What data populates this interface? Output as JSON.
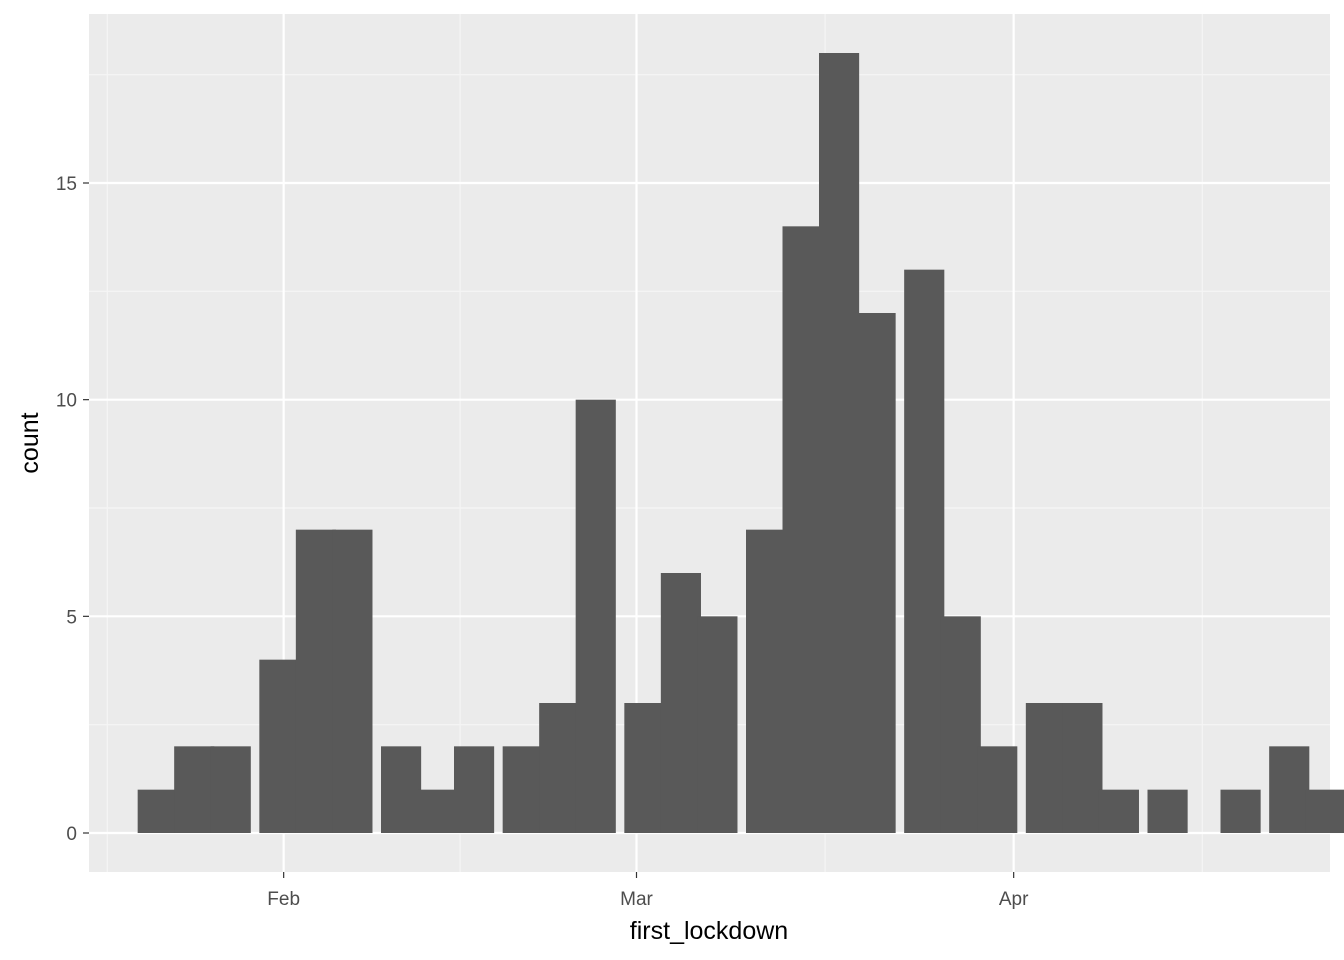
{
  "chart_data": {
    "type": "histogram",
    "xlabel": "first_lockdown",
    "ylabel": "count",
    "x_scale": "date",
    "x_ticks": [
      {
        "label": "Feb",
        "date": "2020-02-01"
      },
      {
        "label": "Mar",
        "date": "2020-03-01"
      },
      {
        "label": "Apr",
        "date": "2020-04-01"
      }
    ],
    "y_ticks": [
      0,
      5,
      10,
      15
    ],
    "ylim": [
      -0.9,
      18.9
    ],
    "xlim": [
      "2020-01-16",
      "2020-04-27"
    ],
    "bin_width_days": 3.3,
    "bins": [
      {
        "start": "2020-01-20",
        "count": 1
      },
      {
        "start": "2020-01-23",
        "count": 2
      },
      {
        "start": "2020-01-26",
        "count": 2
      },
      {
        "start": "2020-01-30",
        "count": 4
      },
      {
        "start": "2020-02-02",
        "count": 7
      },
      {
        "start": "2020-02-05",
        "count": 7
      },
      {
        "start": "2020-02-09",
        "count": 2
      },
      {
        "start": "2020-02-12",
        "count": 1
      },
      {
        "start": "2020-02-15",
        "count": 2
      },
      {
        "start": "2020-02-19",
        "count": 2
      },
      {
        "start": "2020-02-22",
        "count": 3
      },
      {
        "start": "2020-02-25",
        "count": 10
      },
      {
        "start": "2020-02-29",
        "count": 3
      },
      {
        "start": "2020-03-03",
        "count": 6
      },
      {
        "start": "2020-03-06",
        "count": 5
      },
      {
        "start": "2020-03-10",
        "count": 7
      },
      {
        "start": "2020-03-13",
        "count": 14
      },
      {
        "start": "2020-03-16",
        "count": 18
      },
      {
        "start": "2020-03-19",
        "count": 12
      },
      {
        "start": "2020-03-23",
        "count": 13
      },
      {
        "start": "2020-03-26",
        "count": 5
      },
      {
        "start": "2020-03-29",
        "count": 2
      },
      {
        "start": "2020-04-02",
        "count": 3
      },
      {
        "start": "2020-04-05",
        "count": 3
      },
      {
        "start": "2020-04-08",
        "count": 1
      },
      {
        "start": "2020-04-12",
        "count": 1
      },
      {
        "start": "2020-04-15",
        "count": 0
      },
      {
        "start": "2020-04-18",
        "count": 1
      },
      {
        "start": "2020-04-22",
        "count": 2
      },
      {
        "start": "2020-04-25",
        "count": 1
      }
    ],
    "grid": true,
    "colors": {
      "panel_background": "#ebebeb",
      "grid_major": "#ffffff",
      "grid_minor": "#f5f5f5",
      "bar_fill": "#595959",
      "tick_mark": "#333333"
    }
  }
}
